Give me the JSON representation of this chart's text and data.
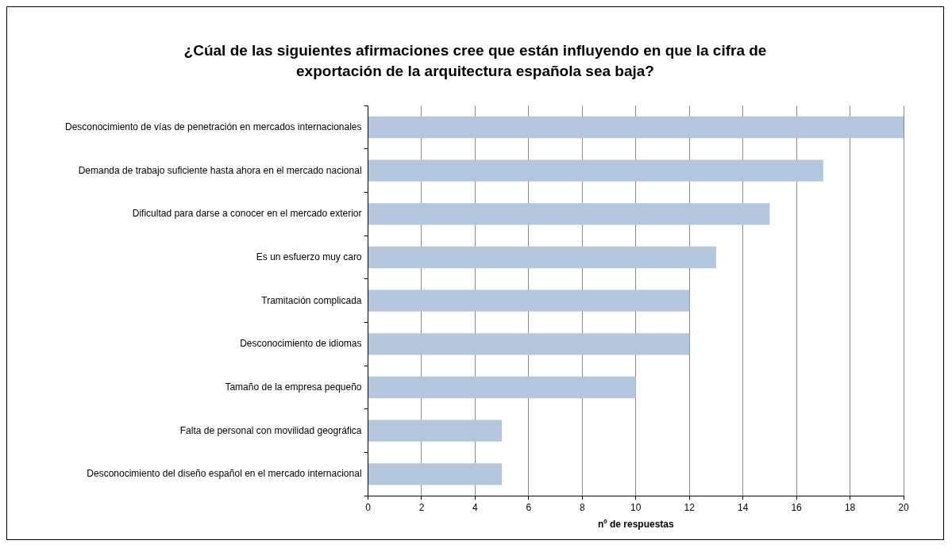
{
  "chart_data": {
    "type": "bar",
    "orientation": "horizontal",
    "title": "¿Cúal de las siguientes afirmaciones cree que están influyendo en que la cifra de exportación de la arquitectura española sea baja?",
    "xlabel": "nº de respuestas",
    "categories": [
      "Desconocimiento de vías de penetración en mercados internacionales",
      "Demanda de trabajo suficiente hasta ahora en el mercado nacional",
      "Dificultad para darse a conocer en el mercado exterior",
      "Es un esfuerzo muy caro",
      "Tramitación complicada",
      "Desconocimiento de idiomas",
      "Tamaño de la empresa pequeño",
      "Falta de personal con movilidad geográfica",
      "Desconocimiento del diseño español en el mercado internacional"
    ],
    "values": [
      20,
      17,
      15,
      13,
      12,
      12,
      10,
      5,
      5
    ],
    "color": "#b3c6de",
    "xlim": [
      0,
      20
    ],
    "xticks": [
      0,
      2,
      4,
      6,
      8,
      10,
      12,
      14,
      16,
      18,
      20
    ],
    "grid": "x",
    "legend": false
  }
}
